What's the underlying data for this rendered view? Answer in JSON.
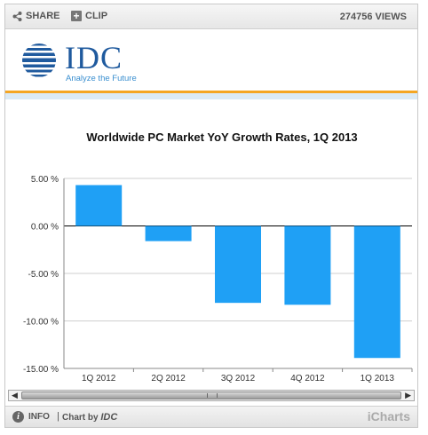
{
  "toolbar": {
    "share_label": "SHARE",
    "clip_label": "CLIP",
    "views_text": "274756 VIEWS"
  },
  "logo": {
    "name": "IDC",
    "tagline": "Analyze the Future"
  },
  "footer": {
    "info_label": "INFO",
    "separator": "|",
    "chart_by_prefix": "Chart by",
    "chart_by_brand": "IDC",
    "brand": "iCharts"
  },
  "colors": {
    "bar": "#1fa0f5",
    "orange_rule": "#f5a623",
    "logo_blue": "#1f5a9e"
  },
  "chart_data": {
    "type": "bar",
    "title": "Worldwide PC Market YoY Growth  Rates, 1Q 2013",
    "xlabel": "",
    "ylabel": "",
    "categories": [
      "1Q 2012",
      "2Q 2012",
      "3Q 2012",
      "4Q 2012",
      "1Q 2013"
    ],
    "values": [
      4.3,
      -1.6,
      -8.1,
      -8.3,
      -13.9
    ],
    "ylim": [
      -15,
      5
    ],
    "yticks": [
      5,
      0,
      -5,
      -10,
      -15
    ],
    "ytick_labels": [
      "5.00 %",
      "0.00 %",
      "-5.00 %",
      "-10.00 %",
      "-15.00 %"
    ],
    "grid": true,
    "legend": "none"
  }
}
